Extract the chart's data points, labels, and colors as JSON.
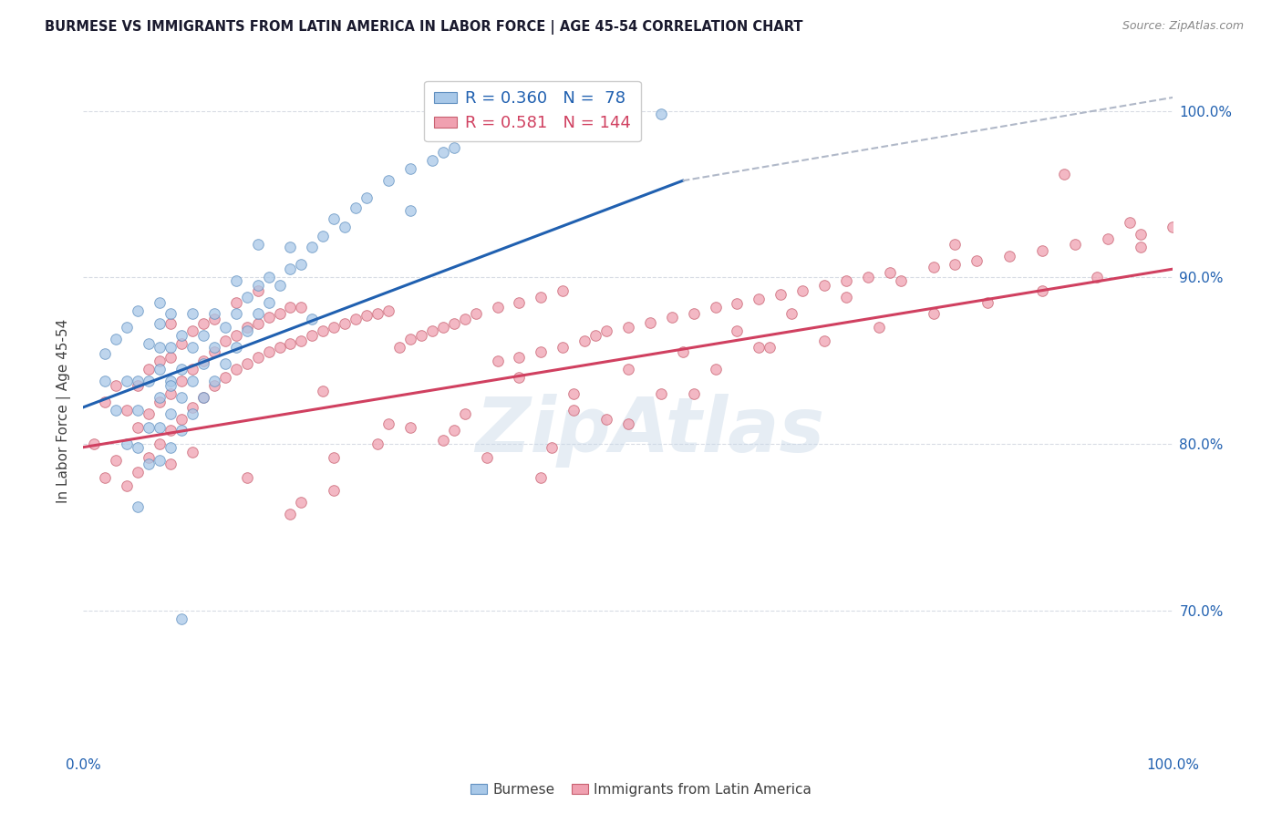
{
  "title": "BURMESE VS IMMIGRANTS FROM LATIN AMERICA IN LABOR FORCE | AGE 45-54 CORRELATION CHART",
  "source": "Source: ZipAtlas.com",
  "ylabel": "In Labor Force | Age 45-54",
  "xlim": [
    0.0,
    1.0
  ],
  "ylim": [
    0.615,
    1.025
  ],
  "xtick_positions": [
    0.0,
    1.0
  ],
  "xtick_labels": [
    "0.0%",
    "100.0%"
  ],
  "ytick_positions": [
    0.7,
    0.8,
    0.9,
    1.0
  ],
  "ytick_labels": [
    "70.0%",
    "80.0%",
    "90.0%",
    "100.0%"
  ],
  "legend_entries": [
    {
      "label": "R = 0.360   N =  78",
      "color": "#a8c8e8",
      "edgecolor": "#6090c0"
    },
    {
      "label": "R = 0.581   N = 144",
      "color": "#f0a0b0",
      "edgecolor": "#c86070"
    }
  ],
  "blue_scatter_x": [
    0.02,
    0.02,
    0.03,
    0.03,
    0.04,
    0.04,
    0.04,
    0.05,
    0.05,
    0.05,
    0.05,
    0.05,
    0.06,
    0.06,
    0.06,
    0.06,
    0.07,
    0.07,
    0.07,
    0.07,
    0.07,
    0.07,
    0.07,
    0.08,
    0.08,
    0.08,
    0.08,
    0.08,
    0.09,
    0.09,
    0.09,
    0.09,
    0.1,
    0.1,
    0.1,
    0.1,
    0.11,
    0.11,
    0.11,
    0.12,
    0.12,
    0.12,
    0.13,
    0.13,
    0.14,
    0.14,
    0.14,
    0.15,
    0.15,
    0.16,
    0.16,
    0.17,
    0.17,
    0.18,
    0.19,
    0.19,
    0.2,
    0.21,
    0.22,
    0.23,
    0.24,
    0.25,
    0.26,
    0.28,
    0.3,
    0.32,
    0.33,
    0.34,
    0.38,
    0.42,
    0.44,
    0.47,
    0.53,
    0.3,
    0.16,
    0.21,
    0.09,
    0.08
  ],
  "blue_scatter_y": [
    0.838,
    0.854,
    0.82,
    0.863,
    0.8,
    0.838,
    0.87,
    0.762,
    0.798,
    0.82,
    0.838,
    0.88,
    0.788,
    0.81,
    0.838,
    0.86,
    0.79,
    0.81,
    0.828,
    0.845,
    0.858,
    0.872,
    0.885,
    0.798,
    0.818,
    0.838,
    0.858,
    0.878,
    0.808,
    0.828,
    0.845,
    0.865,
    0.818,
    0.838,
    0.858,
    0.878,
    0.828,
    0.848,
    0.865,
    0.838,
    0.858,
    0.878,
    0.848,
    0.87,
    0.858,
    0.878,
    0.898,
    0.868,
    0.888,
    0.878,
    0.895,
    0.885,
    0.9,
    0.895,
    0.905,
    0.918,
    0.908,
    0.918,
    0.925,
    0.935,
    0.93,
    0.942,
    0.948,
    0.958,
    0.965,
    0.97,
    0.975,
    0.978,
    0.985,
    0.988,
    0.99,
    0.993,
    0.998,
    0.94,
    0.92,
    0.875,
    0.695,
    0.835
  ],
  "pink_scatter_x": [
    0.01,
    0.02,
    0.02,
    0.03,
    0.03,
    0.04,
    0.04,
    0.05,
    0.05,
    0.05,
    0.06,
    0.06,
    0.06,
    0.07,
    0.07,
    0.07,
    0.08,
    0.08,
    0.08,
    0.08,
    0.09,
    0.09,
    0.09,
    0.1,
    0.1,
    0.1,
    0.11,
    0.11,
    0.11,
    0.12,
    0.12,
    0.12,
    0.13,
    0.13,
    0.14,
    0.14,
    0.14,
    0.15,
    0.15,
    0.16,
    0.16,
    0.16,
    0.17,
    0.17,
    0.18,
    0.18,
    0.19,
    0.19,
    0.2,
    0.2,
    0.21,
    0.22,
    0.22,
    0.23,
    0.24,
    0.25,
    0.26,
    0.27,
    0.28,
    0.29,
    0.3,
    0.31,
    0.32,
    0.33,
    0.34,
    0.35,
    0.36,
    0.38,
    0.38,
    0.4,
    0.4,
    0.42,
    0.42,
    0.44,
    0.44,
    0.46,
    0.47,
    0.48,
    0.5,
    0.52,
    0.54,
    0.56,
    0.58,
    0.6,
    0.62,
    0.64,
    0.66,
    0.68,
    0.7,
    0.72,
    0.74,
    0.78,
    0.82,
    0.85,
    0.88,
    0.91,
    0.94,
    0.97,
    1.0,
    0.2,
    0.15,
    0.1,
    0.23,
    0.08,
    0.3,
    0.35,
    0.4,
    0.45,
    0.5,
    0.55,
    0.6,
    0.65,
    0.7,
    0.75,
    0.8,
    0.42,
    0.27,
    0.19,
    0.62,
    0.5,
    0.68,
    0.73,
    0.78,
    0.83,
    0.88,
    0.93,
    0.97,
    0.96,
    0.56,
    0.45,
    0.34,
    0.23,
    0.37,
    0.33,
    0.28,
    0.43,
    0.48,
    0.53,
    0.58,
    0.63,
    0.8,
    0.9
  ],
  "pink_scatter_y": [
    0.8,
    0.78,
    0.825,
    0.79,
    0.835,
    0.775,
    0.82,
    0.783,
    0.81,
    0.835,
    0.792,
    0.818,
    0.845,
    0.8,
    0.825,
    0.85,
    0.808,
    0.83,
    0.852,
    0.872,
    0.815,
    0.838,
    0.86,
    0.822,
    0.845,
    0.868,
    0.828,
    0.85,
    0.872,
    0.835,
    0.855,
    0.875,
    0.84,
    0.862,
    0.845,
    0.865,
    0.885,
    0.848,
    0.87,
    0.852,
    0.872,
    0.892,
    0.855,
    0.876,
    0.858,
    0.878,
    0.86,
    0.882,
    0.862,
    0.882,
    0.865,
    0.832,
    0.868,
    0.87,
    0.872,
    0.875,
    0.877,
    0.878,
    0.88,
    0.858,
    0.863,
    0.865,
    0.868,
    0.87,
    0.872,
    0.875,
    0.878,
    0.85,
    0.882,
    0.852,
    0.885,
    0.855,
    0.888,
    0.858,
    0.892,
    0.862,
    0.865,
    0.868,
    0.87,
    0.873,
    0.876,
    0.878,
    0.882,
    0.884,
    0.887,
    0.89,
    0.892,
    0.895,
    0.898,
    0.9,
    0.903,
    0.906,
    0.91,
    0.913,
    0.916,
    0.92,
    0.923,
    0.926,
    0.93,
    0.765,
    0.78,
    0.795,
    0.772,
    0.788,
    0.81,
    0.818,
    0.84,
    0.83,
    0.845,
    0.855,
    0.868,
    0.878,
    0.888,
    0.898,
    0.908,
    0.78,
    0.8,
    0.758,
    0.858,
    0.812,
    0.862,
    0.87,
    0.878,
    0.885,
    0.892,
    0.9,
    0.918,
    0.933,
    0.83,
    0.82,
    0.808,
    0.792,
    0.792,
    0.802,
    0.812,
    0.798,
    0.815,
    0.83,
    0.845,
    0.858,
    0.92,
    0.962
  ],
  "blue_line_x": [
    0.0,
    0.55
  ],
  "blue_line_y": [
    0.822,
    0.958
  ],
  "pink_line_x": [
    0.0,
    1.0
  ],
  "pink_line_y": [
    0.798,
    0.905
  ],
  "dashed_line_x": [
    0.55,
    1.0
  ],
  "dashed_line_y": [
    0.958,
    1.008
  ],
  "blue_line_color": "#2060b0",
  "pink_line_color": "#d04060",
  "dashed_line_color": "#b0b8c8",
  "blue_dot_color": "#a8c8e8",
  "blue_dot_edge": "#6090c0",
  "pink_dot_color": "#f0a0b0",
  "pink_dot_edge": "#c86070",
  "dot_size": 70,
  "dot_alpha": 0.75,
  "grid_color": "#d8dce4",
  "watermark": "ZipAtlas",
  "watermark_color": "#c8d8e8",
  "background_color": "#ffffff",
  "title_color": "#1a1a2e",
  "source_color": "#888888",
  "tick_color": "#2060b0",
  "ylabel_color": "#404040"
}
